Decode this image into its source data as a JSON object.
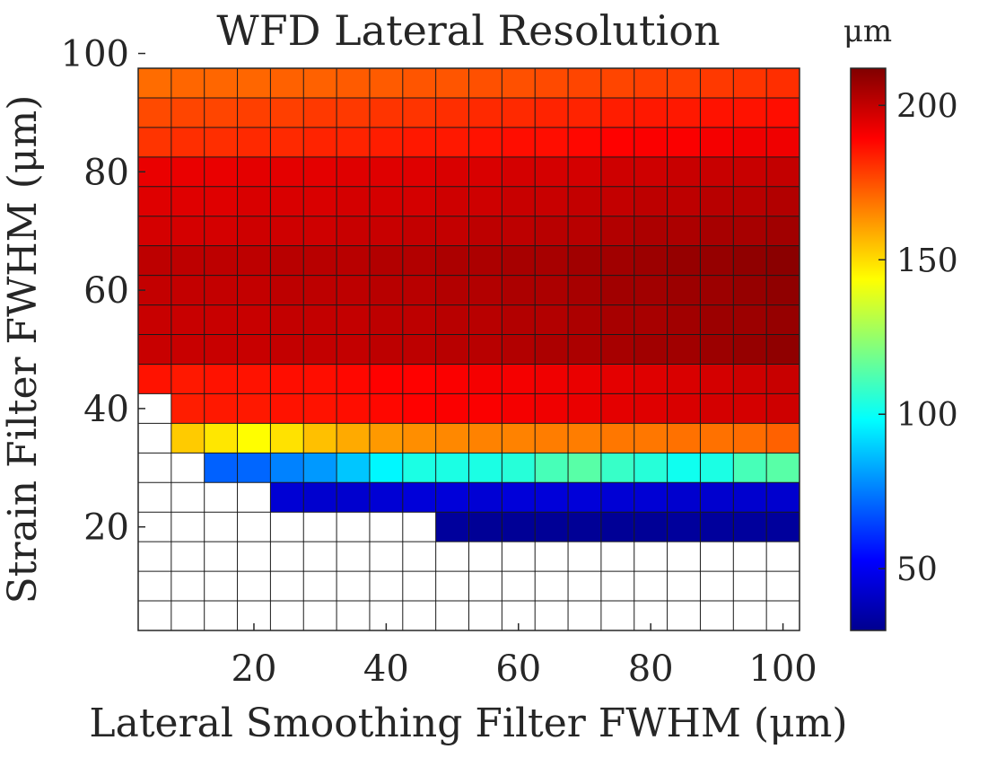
{
  "chart_data": {
    "type": "heatmap",
    "title": "WFD Lateral Resolution",
    "xlabel": "Lateral Smoothing Filter FWHM (μm)",
    "ylabel": "Strain Filter FWHM (μm)",
    "x": [
      5,
      10,
      15,
      20,
      25,
      30,
      35,
      40,
      45,
      50,
      55,
      60,
      65,
      70,
      75,
      80,
      85,
      90,
      95,
      100
    ],
    "y": [
      100,
      95,
      90,
      85,
      80,
      75,
      70,
      65,
      60,
      55,
      50,
      45,
      40,
      35,
      30,
      25,
      20,
      15,
      10,
      5
    ],
    "xlim": [
      2.5,
      102.5
    ],
    "ylim": [
      2.5,
      97.5
    ],
    "x_ticks": [
      20,
      40,
      60,
      80,
      100
    ],
    "y_ticks": [
      20,
      40,
      60,
      80,
      100
    ],
    "colorbar": {
      "label": "μm",
      "range": [
        30,
        212
      ],
      "ticks": [
        50,
        100,
        150,
        200
      ],
      "colormap": "jet"
    },
    "grid": true,
    "missing_value": null,
    "values": [
      [
        164,
        165,
        166,
        166,
        166,
        166,
        166,
        167,
        167,
        168,
        168,
        169,
        169,
        170,
        170,
        171,
        172,
        172,
        173,
        174
      ],
      [
        170,
        171,
        171,
        171,
        172,
        172,
        173,
        173,
        174,
        174,
        175,
        175,
        176,
        177,
        177,
        178,
        178,
        179,
        180,
        181
      ],
      [
        176,
        177,
        177,
        178,
        178,
        179,
        179,
        180,
        180,
        181,
        182,
        182,
        183,
        183,
        184,
        185,
        185,
        186,
        186,
        187
      ],
      [
        180,
        181,
        181,
        182,
        182,
        183,
        183,
        184,
        185,
        185,
        186,
        187,
        187,
        188,
        189,
        190,
        190,
        191,
        192,
        192
      ],
      [
        193,
        193,
        193,
        194,
        194,
        194,
        195,
        195,
        195,
        196,
        196,
        197,
        197,
        197,
        198,
        198,
        199,
        199,
        199,
        200
      ],
      [
        195,
        195,
        195,
        196,
        196,
        196,
        197,
        197,
        197,
        198,
        198,
        199,
        199,
        200,
        200,
        201,
        201,
        202,
        202,
        203
      ],
      [
        197,
        197,
        197,
        198,
        198,
        198,
        199,
        199,
        200,
        200,
        201,
        201,
        202,
        202,
        203,
        204,
        204,
        205,
        205,
        206
      ],
      [
        201,
        201,
        201,
        201,
        202,
        202,
        202,
        203,
        203,
        204,
        204,
        205,
        205,
        206,
        206,
        207,
        208,
        208,
        209,
        210
      ],
      [
        200,
        200,
        200,
        200,
        201,
        201,
        201,
        202,
        202,
        203,
        203,
        204,
        204,
        205,
        206,
        206,
        207,
        207,
        208,
        209
      ],
      [
        199,
        199,
        199,
        199,
        200,
        200,
        200,
        201,
        201,
        202,
        202,
        203,
        203,
        204,
        205,
        205,
        206,
        207,
        207,
        208
      ],
      [
        199,
        199,
        199,
        199,
        200,
        200,
        200,
        201,
        201,
        202,
        202,
        203,
        204,
        204,
        205,
        206,
        206,
        207,
        208,
        209
      ],
      [
        186,
        185,
        186,
        186,
        187,
        187,
        188,
        189,
        189,
        190,
        191,
        191,
        192,
        193,
        194,
        195,
        196,
        197,
        198,
        199
      ],
      [
        null,
        184,
        185,
        185,
        186,
        186,
        187,
        188,
        189,
        190,
        190,
        191,
        192,
        193,
        194,
        195,
        196,
        197,
        197,
        198
      ],
      [
        null,
        153,
        148,
        144,
        149,
        155,
        159,
        162,
        164,
        165,
        166,
        166,
        167,
        167,
        168,
        168,
        169,
        169,
        170,
        172
      ],
      [
        null,
        null,
        70,
        71,
        76,
        80,
        88,
        97,
        103,
        103,
        103,
        105,
        111,
        114,
        108,
        105,
        101,
        103,
        111,
        114
      ],
      [
        null,
        null,
        null,
        null,
        45,
        44,
        44,
        45,
        46,
        46,
        45,
        46,
        46,
        46,
        45,
        45,
        44,
        44,
        44,
        44
      ],
      [
        null,
        null,
        null,
        null,
        null,
        null,
        null,
        null,
        null,
        35,
        34,
        34,
        34,
        34,
        34,
        34,
        35,
        35,
        35,
        35
      ],
      [
        null,
        null,
        null,
        null,
        null,
        null,
        null,
        null,
        null,
        null,
        null,
        null,
        null,
        null,
        null,
        null,
        null,
        null,
        null,
        null
      ],
      [
        null,
        null,
        null,
        null,
        null,
        null,
        null,
        null,
        null,
        null,
        null,
        null,
        null,
        null,
        null,
        null,
        null,
        null,
        null,
        null
      ],
      [
        null,
        null,
        null,
        null,
        null,
        null,
        null,
        null,
        null,
        null,
        null,
        null,
        null,
        null,
        null,
        null,
        null,
        null,
        null,
        null
      ]
    ]
  }
}
